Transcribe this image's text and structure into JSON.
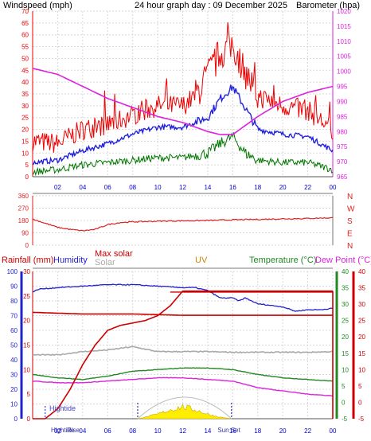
{
  "header": {
    "left_title": "Windspeed (mph)",
    "center_title": "24 hour graph day : 09 December 2025",
    "right_title": "Barometer (hpa)"
  },
  "colors": {
    "wind_red": "#ee0000",
    "wind_blue": "#2222dd",
    "wind_green": "#007700",
    "barometer": "#dd22dd",
    "direction": "#dd2222",
    "rain": "#cc0000",
    "humidity": "#2222cc",
    "maxsolar": "#cc0000",
    "solar": "#aaaaaa",
    "uv": "#cc8800",
    "temperature": "#228822",
    "dewpoint": "#dd22dd",
    "tide": "#4444cc",
    "sun_fill": "#ffee00"
  },
  "chart_data": [
    {
      "type": "line",
      "title": "24 hour graph day : 09 December 2025",
      "ylabel": "Windspeed (mph)",
      "y2label": "Barometer (hpa)",
      "ylim": [
        0,
        70
      ],
      "y2lim": [
        965,
        1020
      ],
      "x_ticks": [
        "02",
        "04",
        "06",
        "08",
        "10",
        "12",
        "14",
        "16",
        "18",
        "20",
        "22",
        "00"
      ],
      "y_ticks": [
        "0",
        "5",
        "10",
        "15",
        "20",
        "25",
        "30",
        "35",
        "40",
        "45",
        "50",
        "55",
        "60",
        "65",
        "70"
      ],
      "y2_ticks": [
        "965",
        "970",
        "975",
        "980",
        "985",
        "990",
        "995",
        "1000",
        "1005",
        "1010",
        "1015",
        "1020"
      ],
      "series": [
        {
          "name": "Windspeed (mph)",
          "hours": [
            0,
            2,
            4,
            6,
            8,
            10,
            12,
            13,
            14,
            15,
            16,
            17,
            18,
            20,
            22,
            24
          ],
          "values": [
            15,
            14,
            20,
            22,
            26,
            30,
            30,
            34,
            43,
            52,
            56,
            44,
            34,
            30,
            28,
            20
          ]
        },
        {
          "hours": [
            0,
            2,
            4,
            6,
            8,
            10,
            12,
            14,
            15,
            16,
            17,
            18,
            20,
            22,
            24
          ],
          "values": [
            6,
            7,
            11,
            14,
            18,
            21,
            21,
            25,
            33,
            38,
            29,
            20,
            18,
            17,
            11
          ]
        },
        {
          "hours": [
            0,
            2,
            4,
            6,
            8,
            10,
            12,
            14,
            15,
            16,
            17,
            18,
            20,
            22,
            24
          ],
          "values": [
            2,
            3,
            5,
            6,
            7,
            8,
            8,
            10,
            14,
            17,
            10,
            7,
            6,
            6,
            3
          ]
        },
        {
          "name": "Barometer (hpa)",
          "hours": [
            0,
            2,
            4,
            6,
            8,
            10,
            12,
            14,
            15,
            16,
            17,
            18,
            20,
            22,
            24
          ],
          "values": [
            1001,
            999,
            995,
            991,
            988,
            985,
            983,
            980,
            979,
            979,
            982,
            985,
            990,
            993,
            995
          ]
        }
      ]
    },
    {
      "type": "line",
      "ylabel": "Wind direction",
      "ylim": [
        0,
        360
      ],
      "y_ticks": [
        "0",
        "90",
        "180",
        "270",
        "360"
      ],
      "compass_labels": [
        "N",
        "W",
        "S",
        "E",
        "N"
      ],
      "series": [
        {
          "hours": [
            0,
            1,
            2,
            3,
            4,
            5,
            6,
            7,
            8,
            10,
            12,
            14,
            16,
            18,
            20,
            22,
            24
          ],
          "values": [
            190,
            160,
            130,
            115,
            105,
            115,
            150,
            165,
            170,
            175,
            178,
            180,
            185,
            188,
            192,
            195,
            200
          ]
        }
      ]
    },
    {
      "type": "line",
      "legend": [
        "Rainfall (mm)",
        "Humidity",
        "Max solar",
        "Solar",
        "UV",
        "Temperature (°C)",
        "Dew Point (°C)"
      ],
      "left_axis": {
        "label": "Humidity",
        "ylim": [
          0,
          100
        ],
        "ticks": [
          "0",
          "10",
          "20",
          "30",
          "40",
          "50",
          "60",
          "70",
          "80",
          "90",
          "100"
        ]
      },
      "rain_axis": {
        "label": "Rainfall (mm)",
        "ylim": [
          0,
          30
        ],
        "ticks": [
          "0",
          "5",
          "10",
          "15",
          "20",
          "25",
          "30"
        ]
      },
      "temp_axis_inner": {
        "ylim": [
          -5,
          40
        ],
        "ticks": [
          "-5",
          "0",
          "5",
          "10",
          "15",
          "20",
          "25",
          "30",
          "35",
          "40"
        ]
      },
      "temp_axis_outer": {
        "ylim": [
          -5,
          40
        ],
        "ticks": [
          "-5",
          "0",
          "5",
          "10",
          "15",
          "20",
          "25",
          "30",
          "35",
          "40"
        ]
      },
      "x_ticks": [
        "02",
        "04",
        "06",
        "08",
        "10",
        "12",
        "14",
        "16",
        "18",
        "20",
        "22",
        "00"
      ],
      "series": [
        {
          "name": "Humidity",
          "axis": "humidity",
          "hours": [
            0,
            0.5,
            2,
            4,
            6,
            8,
            10,
            12,
            13,
            14,
            15,
            16,
            16.5,
            17,
            18,
            20,
            21,
            22,
            23,
            24
          ],
          "values": [
            86,
            88,
            89,
            90,
            91,
            91,
            90,
            89,
            89,
            87,
            82,
            82,
            80,
            82,
            78,
            76,
            73,
            74,
            74,
            75
          ]
        },
        {
          "name": "Rainfall (mm)",
          "axis": "rain",
          "hours": [
            0,
            1,
            2,
            3,
            4,
            5,
            6,
            7,
            8,
            9,
            10,
            11,
            12,
            13,
            14,
            24
          ],
          "values": [
            0,
            0,
            2,
            6,
            11,
            15,
            18,
            19,
            19.5,
            20,
            21,
            23,
            26,
            26,
            26,
            26
          ]
        },
        {
          "name": "Max solar",
          "axis": "temp_inner",
          "hours": [
            0,
            4,
            8,
            10,
            12,
            14,
            16,
            18,
            20,
            22,
            24
          ],
          "values": [
            27.5,
            27,
            27,
            26.8,
            26.6,
            26.6,
            26.6,
            26.6,
            26.6,
            26.6,
            26.6
          ]
        },
        {
          "name": "Solar",
          "axis": "temp_inner",
          "hours": [
            0,
            2,
            4,
            6,
            8,
            10,
            12,
            14,
            16,
            18,
            20,
            22,
            24
          ],
          "values": [
            14.5,
            14.5,
            15.5,
            16,
            17,
            15.5,
            15.5,
            15.5,
            15.3,
            15.3,
            15.3,
            15.3,
            15.5
          ]
        },
        {
          "name": "Temperature (°C)",
          "axis": "temp_inner",
          "hours": [
            0,
            2,
            4,
            6,
            8,
            10,
            12,
            14,
            16,
            18,
            20,
            22,
            24
          ],
          "values": [
            8.5,
            7.5,
            7,
            8,
            9.5,
            10,
            10.5,
            10.5,
            10,
            8.5,
            7.5,
            7,
            6.5
          ]
        },
        {
          "name": "Dew Point (°C)",
          "axis": "temp_inner",
          "hours": [
            0,
            2,
            4,
            6,
            8,
            10,
            12,
            14,
            16,
            18,
            20,
            22,
            24
          ],
          "values": [
            6.5,
            6,
            6,
            6.5,
            7,
            7.5,
            7.5,
            7,
            6.5,
            4.5,
            3.5,
            2.5,
            2
          ]
        },
        {
          "name": "UV",
          "axis": "sun",
          "hours": [
            8.4,
            9,
            10,
            11,
            12,
            13,
            14,
            15,
            15.9
          ],
          "values": [
            0,
            0.1,
            0.3,
            0.6,
            0.8,
            0.6,
            0.3,
            0.1,
            0
          ]
        }
      ],
      "markers": {
        "hightide": {
          "label": "Hightide",
          "hour": 1.0
        },
        "bottom_labels": [
          "Hightide",
          "Rise",
          "Sun Set"
        ]
      }
    }
  ]
}
